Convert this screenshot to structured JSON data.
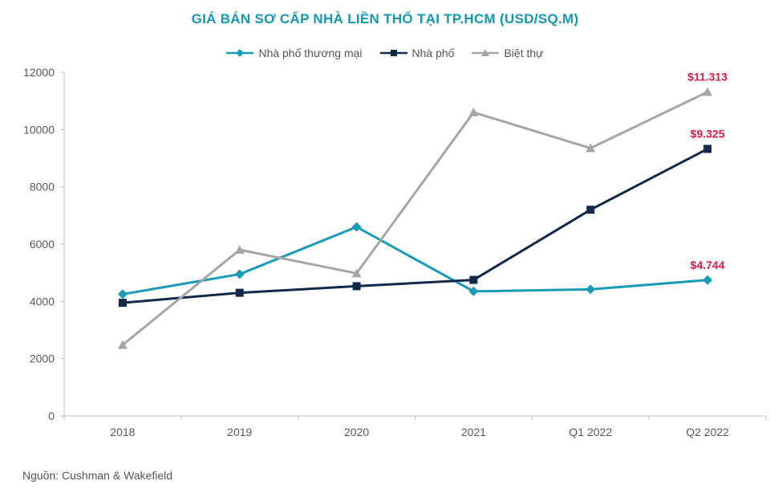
{
  "chart_data": {
    "type": "line",
    "title": "GIÁ BÁN SƠ CẤP NHÀ LIỀN THỔ TẠI TP.HCM (USD/SQ.M)",
    "categories": [
      "2018",
      "2019",
      "2020",
      "2021",
      "Q1 2022",
      "Q2 2022"
    ],
    "ylim": [
      0,
      12000
    ],
    "yticks": [
      "0",
      "2000",
      "4000",
      "6000",
      "8000",
      "10000",
      "12000"
    ],
    "ytick_values": [
      0,
      2000,
      4000,
      6000,
      8000,
      10000,
      12000
    ],
    "grid": false,
    "legend_position": "top",
    "series": [
      {
        "name": "Nhà phố thương mại",
        "color": "#1a9bb5",
        "marker": "diamond",
        "values": [
          4250,
          4950,
          6600,
          4350,
          4420,
          4744
        ],
        "end_label": "$4.744"
      },
      {
        "name": "Nhà phố",
        "color": "#13294b",
        "marker": "square",
        "values": [
          3950,
          4300,
          4530,
          4750,
          7200,
          9325
        ],
        "end_label": "$9.325"
      },
      {
        "name": "Biệt thự",
        "color": "#a6a6a6",
        "marker": "triangle",
        "values": [
          2480,
          5800,
          4980,
          10600,
          9350,
          11313
        ],
        "end_label": "$11.313"
      }
    ],
    "annotation_color": "#d21f46"
  },
  "source_note": "Nguồn: Cushman & Wakefield"
}
